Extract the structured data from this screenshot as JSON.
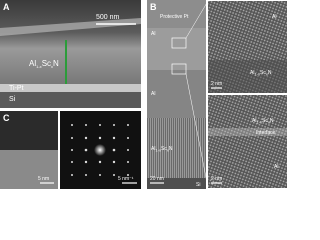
{
  "panel_a": {
    "label": "A",
    "scale_bar": "500 nm",
    "film": [
      "Al",
      "1-x",
      "Sc",
      "x",
      "N"
    ],
    "electrode": "Ti-Pt",
    "substrate": "Si"
  },
  "panel_b": {
    "label": "B",
    "cap": "Protective Pt",
    "top_al": "Al",
    "middle_al": "Al",
    "film": [
      "Al",
      "1-x",
      "Sc",
      "x",
      "N"
    ],
    "substrate": "Si",
    "scale_bar": "20 nm",
    "inset_top": {
      "top": "Al",
      "film": [
        "Al",
        "1-x",
        "Sc",
        "x",
        "N"
      ],
      "scale_bar": "2 nm"
    },
    "inset_bottom": {
      "film": [
        "Al",
        "1-x",
        "Sc",
        "x",
        "N"
      ],
      "interface": "Interface",
      "bottom": "Al",
      "scale_bar": "2 nm"
    }
  },
  "panel_c": {
    "label": "C",
    "scale_bar_image": "5 nm",
    "scale_bar_diffraction": "5 nm⁻¹"
  }
}
